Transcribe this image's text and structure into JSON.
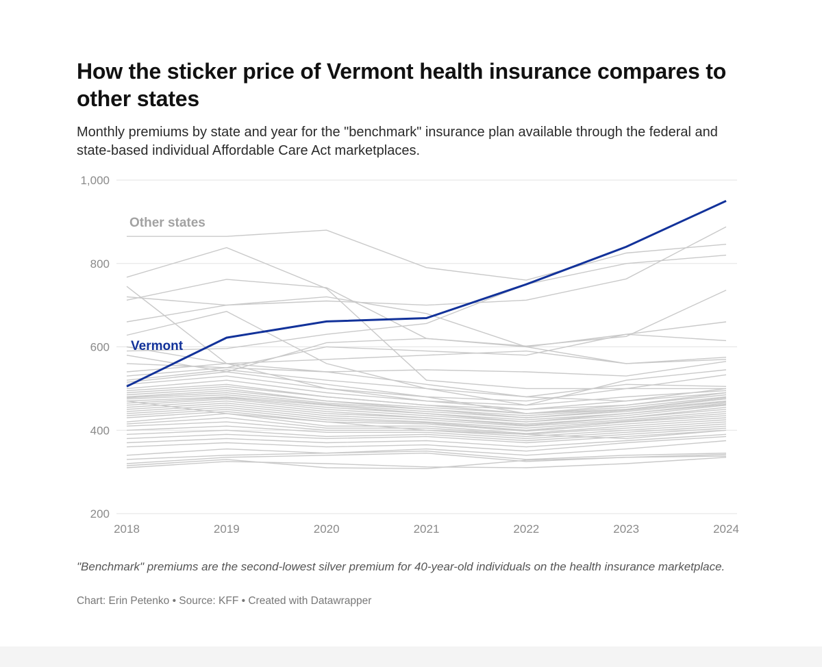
{
  "header": {
    "title": "How the sticker price of Vermont health insurance compares to other states",
    "subtitle": "Monthly premiums by state and year for the \"benchmark\" insurance plan available through the federal and state-based individual Affordable Care Act marketplaces."
  },
  "footer": {
    "notes": "\"Benchmark\" premiums are the second-lowest silver premium for 40-year-old individuals on the health insurance marketplace.",
    "byline": "Chart: Erin Petenko • Source: KFF • Created with Datawrapper"
  },
  "colors": {
    "highlight": "#12329a",
    "others": "#c9c9c9",
    "grid": "#e3e3e3"
  },
  "chart_data": {
    "type": "line",
    "title": "How the sticker price of Vermont health insurance compares to other states",
    "x": [
      "2018",
      "2019",
      "2020",
      "2021",
      "2022",
      "2023",
      "2024"
    ],
    "ylim": [
      200,
      1000
    ],
    "yticks": [
      200,
      400,
      600,
      800,
      1000
    ],
    "ytick_labels": [
      "200",
      "400",
      "600",
      "800",
      "1,000"
    ],
    "xlabel": "",
    "ylabel": "",
    "grid": true,
    "annotations": {
      "others_label": "Other states",
      "highlight_label": "Vermont"
    },
    "highlight_series": {
      "name": "Vermont",
      "values": [
        505,
        622,
        661,
        669,
        750,
        840,
        950
      ]
    },
    "other_series": [
      {
        "values": [
          865,
          865,
          880,
          790,
          760,
          825,
          846
        ]
      },
      {
        "values": [
          767,
          838,
          740,
          520,
          500,
          500,
          533
        ]
      },
      {
        "values": [
          745,
          560,
          500,
          480,
          440,
          460,
          490
        ]
      },
      {
        "values": [
          712,
          762,
          742,
          620,
          600,
          630,
          660
        ]
      },
      {
        "values": [
          720,
          700,
          710,
          700,
          712,
          763,
          888
        ]
      },
      {
        "values": [
          660,
          700,
          720,
          680,
          600,
          560,
          575
        ]
      },
      {
        "values": [
          628,
          685,
          560,
          500,
          460,
          520,
          545
        ]
      },
      {
        "values": [
          590,
          596,
          630,
          656,
          750,
          800,
          820
        ]
      },
      {
        "values": [
          580,
          540,
          610,
          620,
          602,
          625,
          736
        ]
      },
      {
        "values": [
          560,
          550,
          600,
          590,
          580,
          630,
          615
        ]
      },
      {
        "values": [
          540,
          560,
          570,
          580,
          590,
          560,
          570
        ]
      },
      {
        "values": [
          530,
          550,
          540,
          545,
          540,
          530,
          565
        ]
      },
      {
        "values": [
          520,
          545,
          520,
          500,
          480,
          510,
          505
        ]
      },
      {
        "values": [
          515,
          540,
          510,
          480,
          470,
          500,
          500
        ]
      },
      {
        "values": [
          510,
          530,
          500,
          470,
          460,
          480,
          495
        ]
      },
      {
        "values": [
          500,
          520,
          490,
          470,
          450,
          470,
          490
        ]
      },
      {
        "values": [
          495,
          510,
          480,
          460,
          450,
          460,
          485
        ]
      },
      {
        "values": [
          490,
          505,
          480,
          460,
          440,
          455,
          480
        ]
      },
      {
        "values": [
          485,
          500,
          470,
          455,
          440,
          450,
          478
        ]
      },
      {
        "values": [
          480,
          495,
          470,
          450,
          435,
          450,
          475
        ]
      },
      {
        "values": [
          478,
          490,
          465,
          450,
          430,
          448,
          470
        ]
      },
      {
        "values": [
          475,
          485,
          462,
          445,
          430,
          445,
          468
        ]
      },
      {
        "values": [
          470,
          480,
          460,
          440,
          425,
          440,
          465
        ]
      },
      {
        "values": [
          465,
          478,
          455,
          440,
          420,
          440,
          462
        ]
      },
      {
        "values": [
          460,
          475,
          450,
          435,
          420,
          435,
          460
        ]
      },
      {
        "values": [
          455,
          470,
          445,
          430,
          415,
          430,
          455
        ]
      },
      {
        "values": [
          450,
          465,
          440,
          430,
          412,
          430,
          450
        ]
      },
      {
        "values": [
          445,
          460,
          435,
          425,
          410,
          425,
          445
        ]
      },
      {
        "values": [
          440,
          455,
          430,
          420,
          405,
          422,
          440
        ]
      },
      {
        "values": [
          435,
          450,
          425,
          418,
          400,
          420,
          435
        ]
      },
      {
        "values": [
          430,
          445,
          420,
          415,
          398,
          415,
          430
        ]
      },
      {
        "values": [
          420,
          440,
          410,
          410,
          392,
          410,
          425
        ]
      },
      {
        "values": [
          415,
          430,
          405,
          405,
          390,
          405,
          420
        ]
      },
      {
        "values": [
          410,
          420,
          400,
          400,
          385,
          400,
          415
        ]
      },
      {
        "values": [
          400,
          410,
          395,
          395,
          380,
          395,
          410
        ]
      },
      {
        "values": [
          390,
          400,
          385,
          390,
          375,
          390,
          405
        ]
      },
      {
        "values": [
          380,
          390,
          380,
          385,
          370,
          385,
          400
        ]
      },
      {
        "values": [
          370,
          380,
          370,
          375,
          360,
          375,
          390
        ]
      },
      {
        "values": [
          360,
          370,
          360,
          365,
          350,
          370,
          385
        ]
      },
      {
        "values": [
          340,
          355,
          345,
          355,
          340,
          355,
          375
        ]
      },
      {
        "values": [
          330,
          340,
          345,
          350,
          330,
          340,
          345
        ]
      },
      {
        "values": [
          320,
          335,
          340,
          345,
          325,
          335,
          342
        ]
      },
      {
        "values": [
          315,
          330,
          310,
          308,
          328,
          335,
          338
        ]
      },
      {
        "values": [
          310,
          325,
          320,
          312,
          310,
          320,
          335
        ]
      },
      {
        "values": [
          470,
          440,
          420,
          400,
          390,
          380,
          400
        ]
      },
      {
        "values": [
          600,
          560,
          540,
          510,
          480,
          470,
          500
        ]
      }
    ]
  }
}
